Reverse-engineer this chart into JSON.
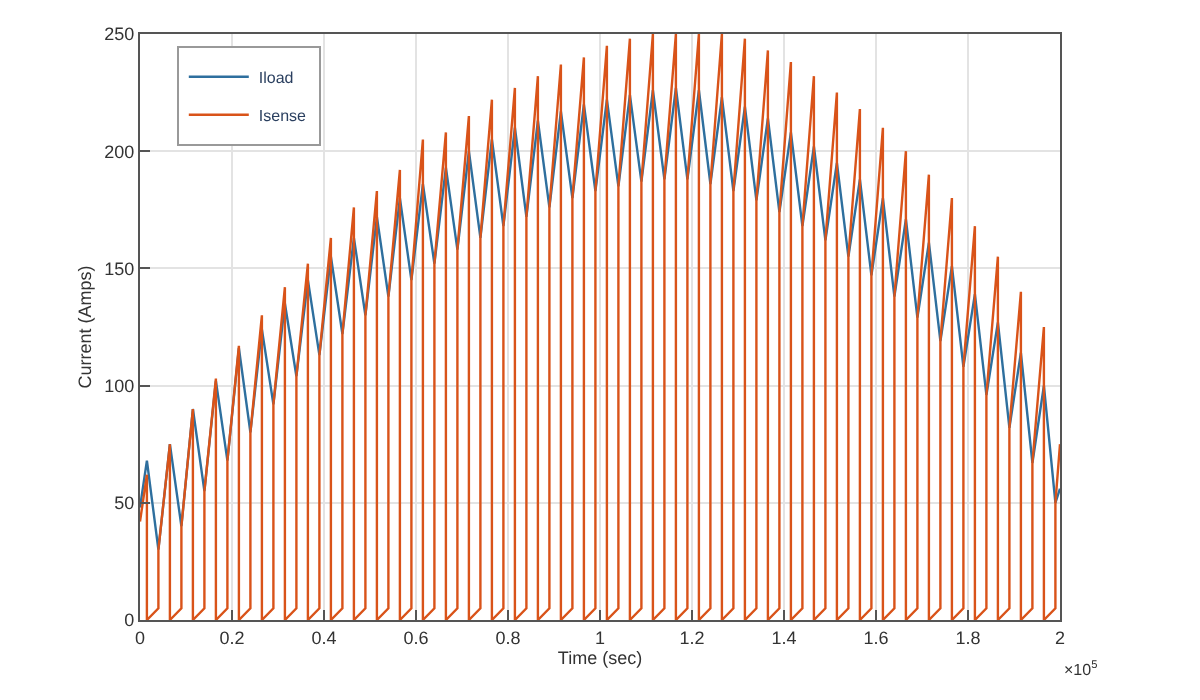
{
  "chart_data": {
    "type": "line",
    "xlabel": "Time (sec)",
    "ylabel": "Current (Amps)",
    "xlim": [
      0,
      2
    ],
    "ylim": [
      0,
      250
    ],
    "xticks": [
      0,
      0.2,
      0.4,
      0.6,
      0.8,
      1,
      1.2,
      1.4,
      1.6,
      1.8,
      2
    ],
    "yticks": [
      0,
      50,
      100,
      150,
      200,
      250
    ],
    "grid": true,
    "legend": "top left",
    "marker": "none",
    "line_style": "solid",
    "annotations": [
      "×10$^{5}$"
    ],
    "series": [
      {
        "name": "Iload",
        "color": "#2e6f9e",
        "x": [
          0,
          0.015,
          0.04,
          0.065,
          0.09,
          0.115,
          0.14,
          0.165,
          0.19,
          0.215,
          0.24,
          0.265,
          0.29,
          0.315,
          0.34,
          0.365,
          0.39,
          0.415,
          0.44,
          0.465,
          0.49,
          0.515,
          0.54,
          0.565,
          0.59,
          0.615,
          0.64,
          0.665,
          0.69,
          0.715,
          0.74,
          0.765,
          0.79,
          0.815,
          0.84,
          0.865,
          0.89,
          0.915,
          0.94,
          0.965,
          0.99,
          1.015,
          1.04,
          1.065,
          1.09,
          1.115,
          1.14,
          1.165,
          1.19,
          1.215,
          1.24,
          1.265,
          1.29,
          1.315,
          1.34,
          1.365,
          1.39,
          1.415,
          1.44,
          1.465,
          1.49,
          1.515,
          1.54,
          1.565,
          1.59,
          1.615,
          1.64,
          1.665,
          1.69,
          1.715,
          1.74,
          1.765,
          1.79,
          1.815,
          1.84,
          1.865,
          1.89,
          1.915,
          1.94,
          1.965,
          1.99,
          2.0
        ],
        "values": [
          48,
          68,
          30,
          75,
          40,
          90,
          55,
          102,
          68,
          116,
          80,
          124,
          92,
          135,
          104,
          145,
          113,
          155,
          122,
          163,
          130,
          172,
          138,
          180,
          145,
          186,
          152,
          193,
          158,
          200,
          163,
          205,
          168,
          210,
          172,
          213,
          176,
          217,
          180,
          220,
          183,
          222,
          185,
          224,
          187,
          226,
          188,
          227,
          188,
          226,
          186,
          223,
          183,
          219,
          179,
          214,
          174,
          208,
          168,
          202,
          162,
          195,
          155,
          188,
          147,
          180,
          138,
          171,
          129,
          161,
          119,
          151,
          108,
          139,
          96,
          127,
          82,
          114,
          67,
          100,
          50,
          56
        ]
      },
      {
        "name": "Isense",
        "color": "#d95319",
        "x": [
          0,
          0.015,
          0.015,
          0.04,
          0.04,
          0.065,
          0.065,
          0.09,
          0.09,
          0.115,
          0.115,
          0.14,
          0.14,
          0.165,
          0.165,
          0.19,
          0.19,
          0.215,
          0.215,
          0.24,
          0.24,
          0.265,
          0.265,
          0.29,
          0.29,
          0.315,
          0.315,
          0.34,
          0.34,
          0.365,
          0.365,
          0.39,
          0.39,
          0.415,
          0.415,
          0.44,
          0.44,
          0.465,
          0.465,
          0.49,
          0.49,
          0.515,
          0.515,
          0.54,
          0.54,
          0.565,
          0.565,
          0.59,
          0.59,
          0.615,
          0.615,
          0.64,
          0.64,
          0.665,
          0.665,
          0.69,
          0.69,
          0.715,
          0.715,
          0.74,
          0.74,
          0.765,
          0.765,
          0.79,
          0.79,
          0.815,
          0.815,
          0.84,
          0.84,
          0.865,
          0.865,
          0.89,
          0.89,
          0.915,
          0.915,
          0.94,
          0.94,
          0.965,
          0.965,
          0.99,
          0.99,
          1.015,
          1.015,
          1.04,
          1.04,
          1.065,
          1.065,
          1.09,
          1.09,
          1.115,
          1.115,
          1.14,
          1.14,
          1.165,
          1.165,
          1.19,
          1.19,
          1.215,
          1.215,
          1.24,
          1.24,
          1.265,
          1.265,
          1.29,
          1.29,
          1.315,
          1.315,
          1.34,
          1.34,
          1.365,
          1.365,
          1.39,
          1.39,
          1.415,
          1.415,
          1.44,
          1.44,
          1.465,
          1.465,
          1.49,
          1.49,
          1.515,
          1.515,
          1.54,
          1.54,
          1.565,
          1.565,
          1.59,
          1.59,
          1.615,
          1.615,
          1.64,
          1.64,
          1.665,
          1.665,
          1.69,
          1.69,
          1.715,
          1.715,
          1.74,
          1.74,
          1.765,
          1.765,
          1.79,
          1.79,
          1.815,
          1.815,
          1.84,
          1.84,
          1.865,
          1.865,
          1.89,
          1.89,
          1.915,
          1.915,
          1.94,
          1.94,
          1.965,
          1.965,
          1.99,
          1.99,
          2.0
        ],
        "values": [
          42,
          62,
          0,
          5,
          30,
          75,
          0,
          5,
          40,
          90,
          0,
          5,
          55,
          103,
          0,
          5,
          68,
          117,
          0,
          5,
          80,
          130,
          0,
          5,
          92,
          142,
          0,
          5,
          104,
          152,
          0,
          5,
          113,
          163,
          0,
          5,
          122,
          176,
          0,
          5,
          130,
          183,
          0,
          5,
          138,
          192,
          0,
          5,
          145,
          205,
          0,
          5,
          152,
          208,
          0,
          5,
          158,
          215,
          0,
          5,
          163,
          222,
          0,
          5,
          168,
          227,
          0,
          5,
          172,
          232,
          0,
          5,
          176,
          237,
          0,
          5,
          180,
          240,
          0,
          5,
          183,
          245,
          0,
          5,
          185,
          248,
          0,
          5,
          187,
          250,
          0,
          5,
          188,
          250,
          0,
          5,
          188,
          250,
          0,
          5,
          186,
          250,
          0,
          5,
          183,
          248,
          0,
          5,
          179,
          243,
          0,
          5,
          174,
          238,
          0,
          5,
          168,
          232,
          0,
          5,
          162,
          225,
          0,
          5,
          155,
          218,
          0,
          5,
          147,
          210,
          0,
          5,
          138,
          200,
          0,
          5,
          129,
          190,
          0,
          5,
          119,
          180,
          0,
          5,
          108,
          168,
          0,
          5,
          96,
          155,
          0,
          5,
          82,
          140,
          0,
          5,
          67,
          125,
          0,
          5,
          50,
          75
        ]
      }
    ]
  }
}
